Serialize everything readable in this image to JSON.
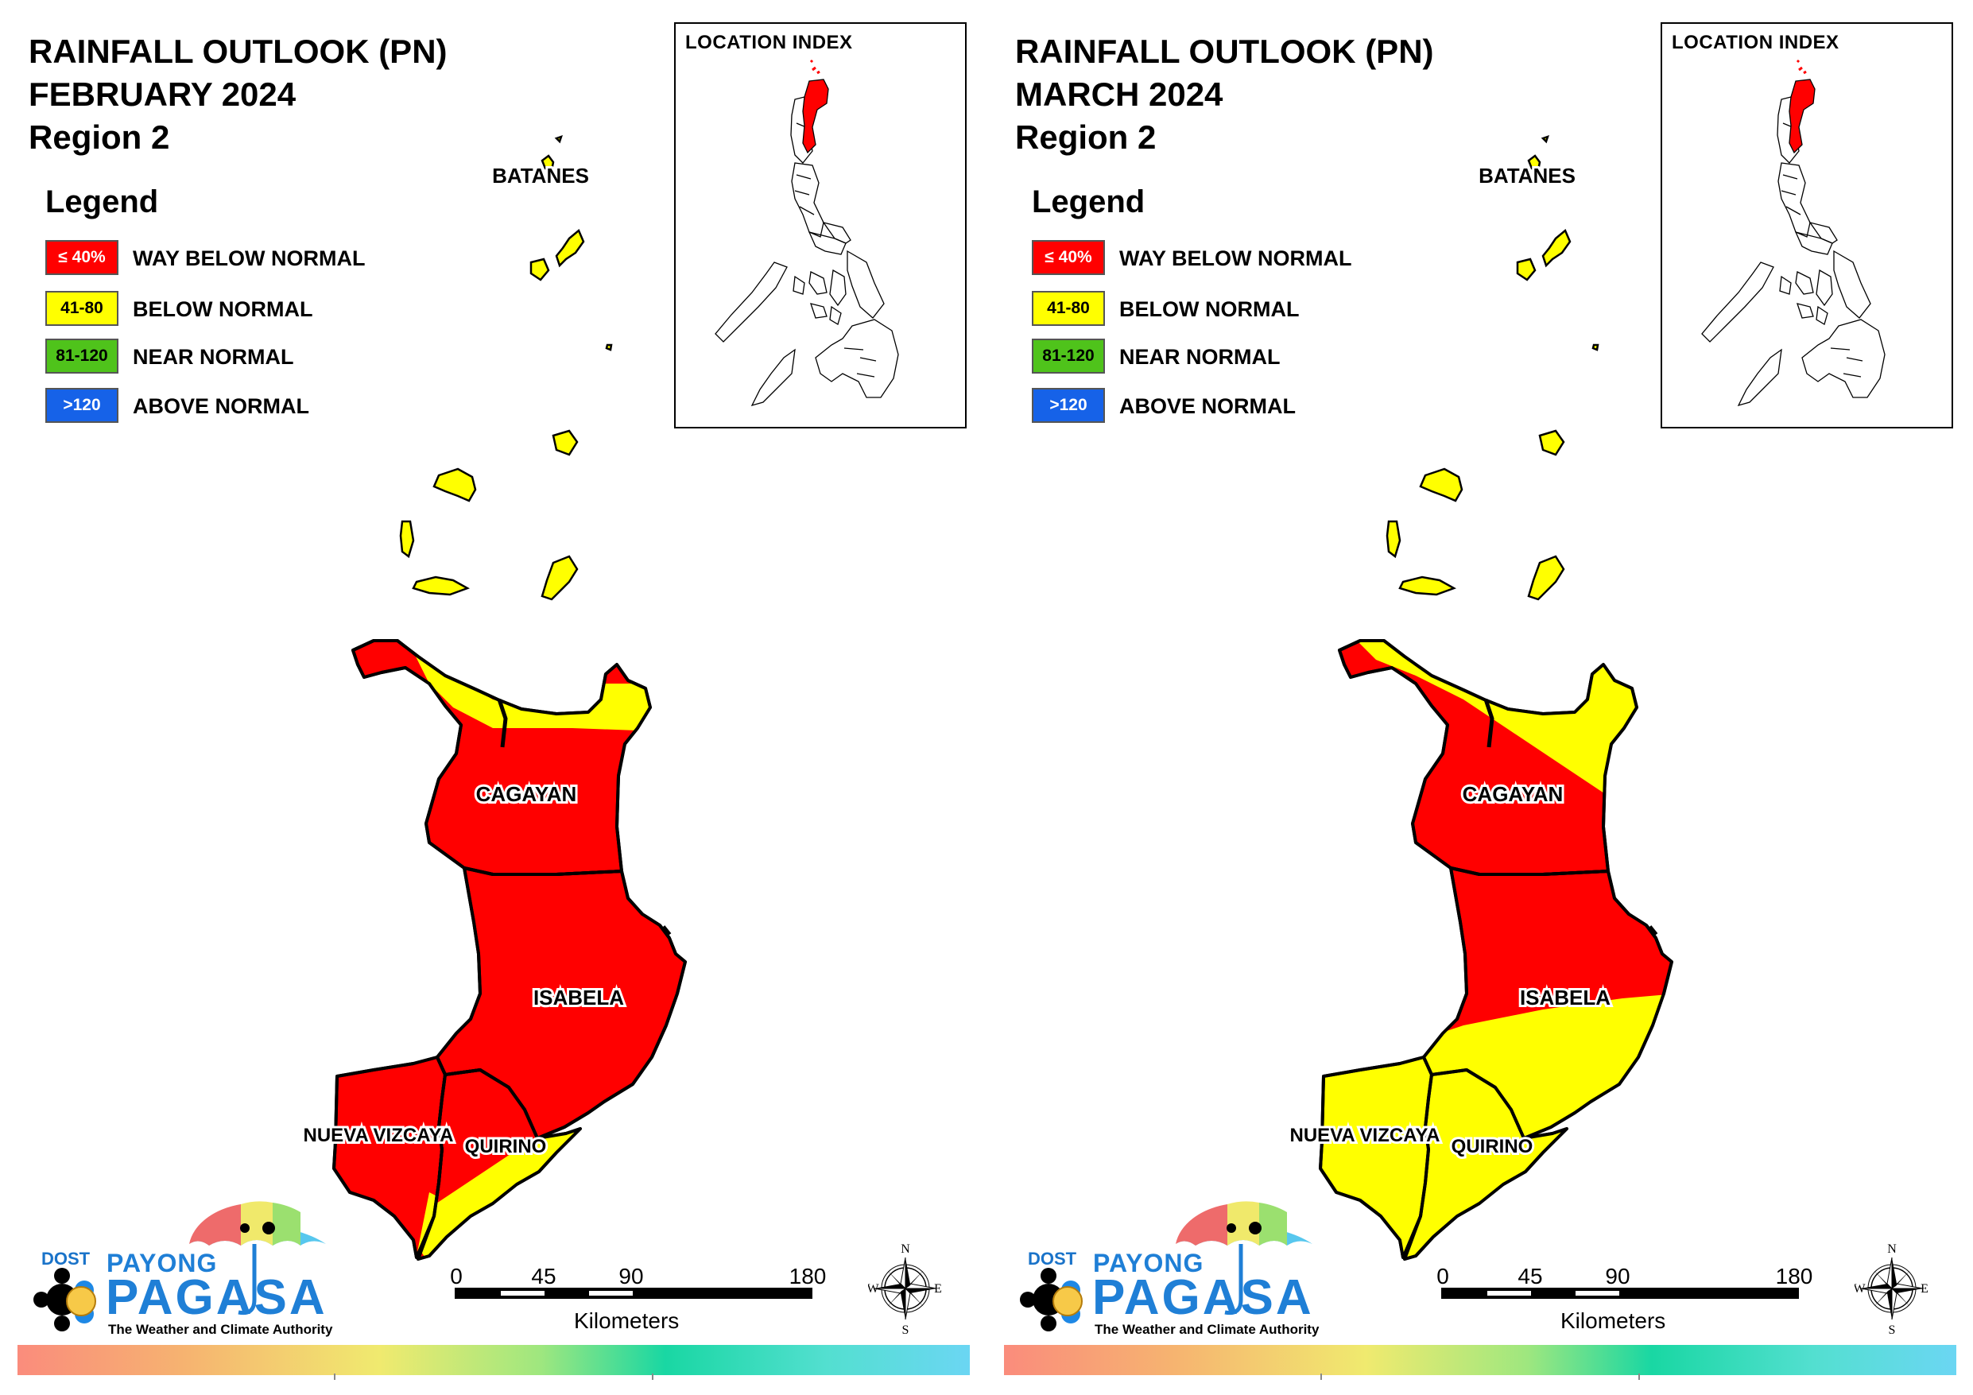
{
  "panels": [
    {
      "title_lines": [
        "RAINFALL OUTLOOK (PN)",
        "FEBRUARY 2024",
        "Region 2"
      ],
      "legend": {
        "title": "Legend",
        "items": [
          {
            "code": "≤ 40%",
            "label": "WAY BELOW NORMAL",
            "color": "#ff0000",
            "text_color": "#ffffff"
          },
          {
            "code": "41-80",
            "label": "BELOW NORMAL",
            "color": "#ffff00",
            "text_color": "#000000"
          },
          {
            "code": "81-120",
            "label": "NEAR NORMAL",
            "color": "#4fc31b",
            "text_color": "#000000"
          },
          {
            "code": ">120",
            "label": "ABOVE NORMAL",
            "color": "#1662e8",
            "text_color": "#ffffff"
          }
        ]
      },
      "inset_title": "LOCATION INDEX",
      "province_labels": {
        "batanes": "BATANES",
        "cagayan": "CAGAYAN",
        "isabela": "ISABELA",
        "nueva_vizcaya": "NUEVA VIZCAYA",
        "quirino": "QUIRINO"
      },
      "province_categories": {
        "batanes": "BELOW NORMAL",
        "cagayan": "WAY BELOW NORMAL",
        "isabela": "WAY BELOW NORMAL",
        "nueva_vizcaya": "WAY BELOW NORMAL",
        "quirino": "WAY BELOW NORMAL"
      },
      "scale": {
        "ticks": [
          "0",
          "45",
          "90",
          "180"
        ],
        "units": "Kilometers"
      },
      "compass": {
        "n": "N",
        "s": "S",
        "e": "E",
        "w": "W"
      },
      "brand": {
        "dost": "DOST",
        "payong": "PAYONG",
        "pagasa": "PAGASA",
        "tagline": "The Weather and Climate Authority"
      }
    },
    {
      "title_lines": [
        "RAINFALL OUTLOOK (PN)",
        "MARCH 2024",
        "Region 2"
      ],
      "legend": {
        "title": "Legend",
        "items": [
          {
            "code": "≤ 40%",
            "label": "WAY BELOW NORMAL",
            "color": "#ff0000",
            "text_color": "#ffffff"
          },
          {
            "code": "41-80",
            "label": "BELOW NORMAL",
            "color": "#ffff00",
            "text_color": "#000000"
          },
          {
            "code": "81-120",
            "label": "NEAR NORMAL",
            "color": "#4fc31b",
            "text_color": "#000000"
          },
          {
            "code": ">120",
            "label": "ABOVE NORMAL",
            "color": "#1662e8",
            "text_color": "#ffffff"
          }
        ]
      },
      "inset_title": "LOCATION INDEX",
      "province_labels": {
        "batanes": "BATANES",
        "cagayan": "CAGAYAN",
        "isabela": "ISABELA",
        "nueva_vizcaya": "NUEVA VIZCAYA",
        "quirino": "QUIRINO"
      },
      "province_categories": {
        "batanes": "BELOW NORMAL",
        "cagayan": "WAY BELOW NORMAL",
        "isabela": "WAY BELOW NORMAL",
        "nueva_vizcaya": "BELOW NORMAL",
        "quirino": "BELOW NORMAL"
      },
      "scale": {
        "ticks": [
          "0",
          "45",
          "90",
          "180"
        ],
        "units": "Kilometers"
      },
      "compass": {
        "n": "N",
        "s": "S",
        "e": "E",
        "w": "W"
      },
      "brand": {
        "dost": "DOST",
        "payong": "PAYONG",
        "pagasa": "PAGASA",
        "tagline": "The Weather and Climate Authority"
      }
    }
  ],
  "colors": {
    "way_below": "#ff0000",
    "below": "#ffff00",
    "near": "#4fc31b",
    "above": "#1662e8"
  }
}
